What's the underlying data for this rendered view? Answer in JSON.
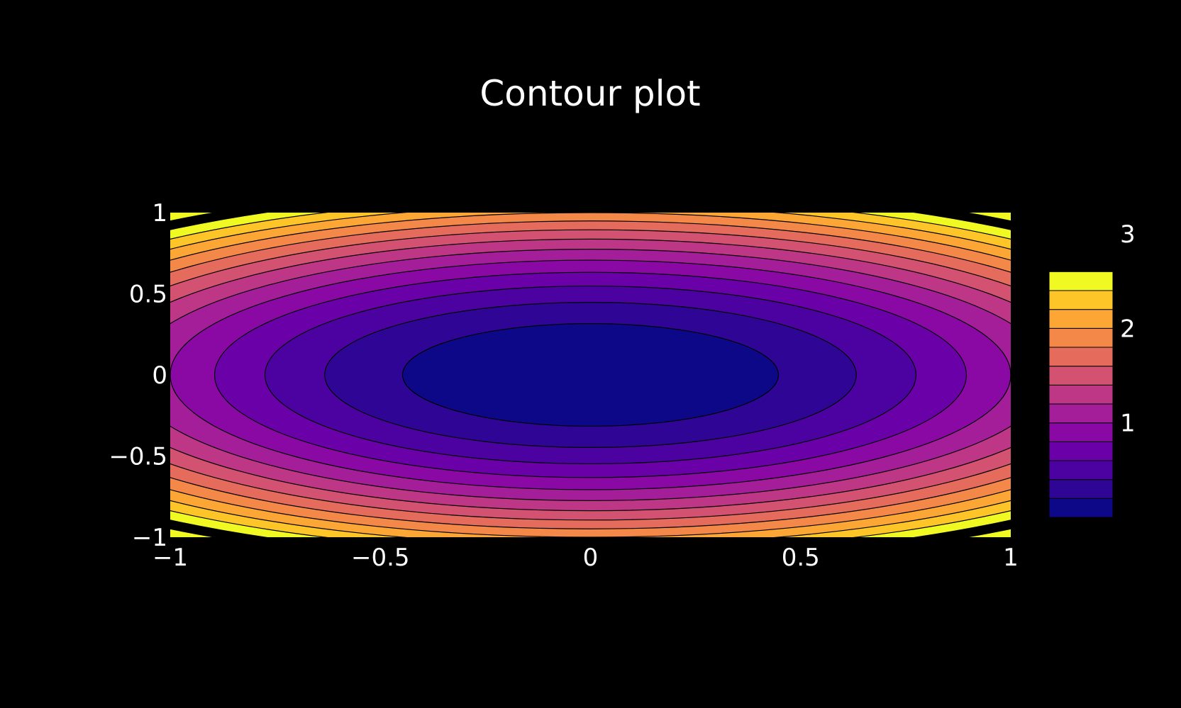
{
  "chart_data": {
    "type": "contour",
    "title": "Contour plot",
    "xlabel": "",
    "ylabel": "",
    "xlim": [
      -1,
      1
    ],
    "ylim": [
      -1,
      1
    ],
    "x_ticks": [
      -1,
      -0.5,
      0,
      0.5,
      1
    ],
    "x_tick_labels": [
      "−1",
      "−0.5",
      "0",
      "0.5",
      "1"
    ],
    "y_ticks": [
      -1,
      -0.5,
      0,
      0.5,
      1
    ],
    "y_tick_labels": [
      "−1",
      "−0.5",
      "0",
      "0.5",
      "1"
    ],
    "function": "z = x^2 + 2y^2",
    "levels": [
      0.2,
      0.4,
      0.6,
      0.8,
      1.0,
      1.2,
      1.4,
      1.6,
      1.8,
      2.0,
      2.2,
      2.4,
      2.6,
      2.8
    ],
    "level_colors": [
      "#0d0887",
      "#2e0595",
      "#4c02a1",
      "#6a00a8",
      "#8a09a5",
      "#a41e9a",
      "#bd3786",
      "#d35171",
      "#e56b5d",
      "#f48849",
      "#fca636",
      "#fdc527",
      "#f0f921"
    ],
    "colorbar": {
      "range": [
        0,
        3
      ],
      "ticks": [
        1,
        2,
        3
      ],
      "tick_labels": [
        "1",
        "2",
        "3"
      ]
    },
    "contour_line_color": "#000000",
    "background": "#000000",
    "grid": false,
    "legend": "colorbar-right"
  }
}
